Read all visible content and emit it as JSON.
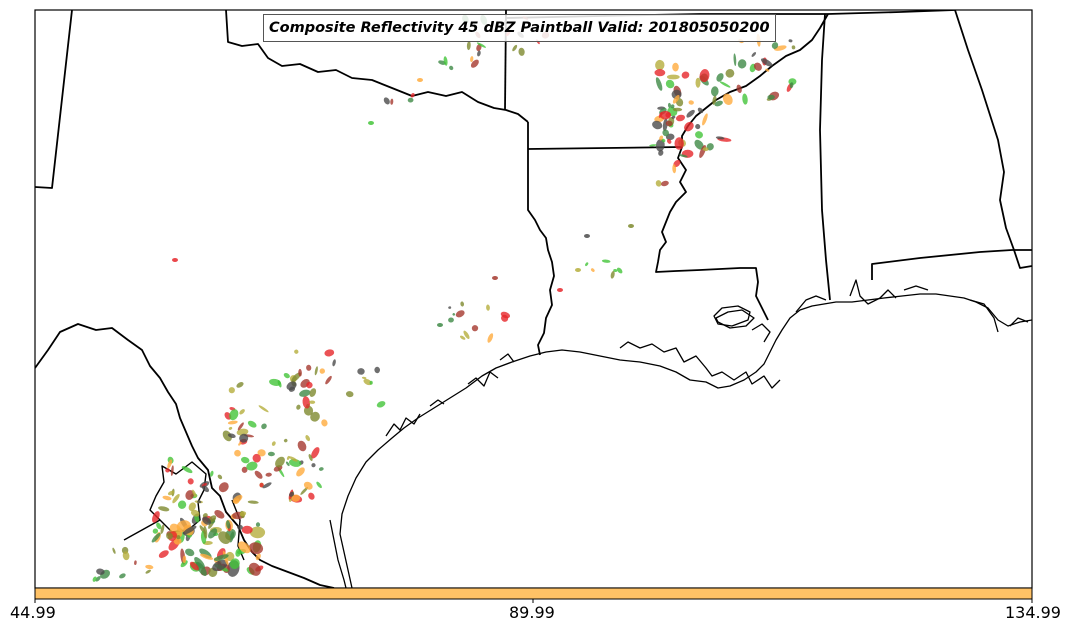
{
  "title": "Composite Reflectivity 45 dBZ Paintball Valid: 201805050200",
  "colorbar": {
    "color": "#FFC266",
    "ticks": [
      "44.99",
      "89.99",
      "134.99"
    ]
  },
  "palette": [
    "#E6272B",
    "#FFAB3D",
    "#44C43A",
    "#4B4B4B",
    "#7E8A2E",
    "#B5AE3C",
    "#A5382E",
    "#3E8A46"
  ]
}
